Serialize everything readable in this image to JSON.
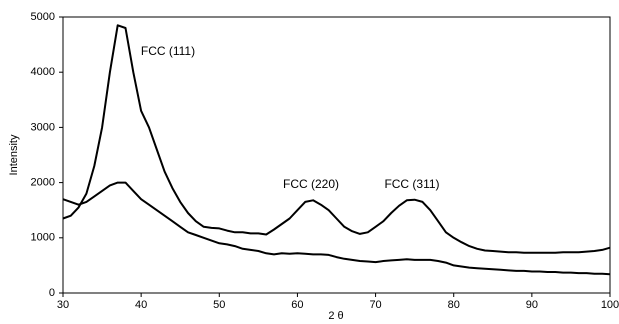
{
  "chart_data": {
    "type": "line",
    "x_label": "2 θ",
    "y_label": "Intensity",
    "annotations": [
      "FCC (111)",
      "FCC (220)",
      "FCC (311)"
    ],
    "x": [
      30,
      31,
      32,
      33,
      34,
      35,
      36,
      37,
      38,
      39,
      40,
      41,
      42,
      43,
      44,
      45,
      46,
      47,
      48,
      49,
      50,
      51,
      52,
      53,
      54,
      55,
      56,
      57,
      58,
      59,
      60,
      61,
      62,
      63,
      64,
      65,
      66,
      67,
      68,
      69,
      70,
      71,
      72,
      73,
      74,
      75,
      76,
      77,
      78,
      79,
      80,
      81,
      82,
      83,
      84,
      85,
      86,
      87,
      88,
      89,
      90,
      91,
      92,
      93,
      94,
      95,
      96,
      97,
      98,
      99,
      100
    ],
    "series": [
      {
        "color": "#000000",
        "values": [
          1350,
          1400,
          1550,
          1800,
          2300,
          3000,
          4000,
          4850,
          4800,
          4000,
          3300,
          3000,
          2600,
          2200,
          1900,
          1650,
          1450,
          1300,
          1200,
          1180,
          1170,
          1130,
          1100,
          1100,
          1080,
          1080,
          1060,
          1150,
          1250,
          1350,
          1500,
          1650,
          1680,
          1600,
          1500,
          1350,
          1200,
          1120,
          1070,
          1100,
          1200,
          1300,
          1450,
          1580,
          1680,
          1690,
          1650,
          1500,
          1300,
          1100,
          1000,
          920,
          850,
          800,
          770,
          760,
          750,
          740,
          740,
          730,
          730,
          730,
          730,
          730,
          740,
          740,
          740,
          750,
          760,
          780,
          820
        ]
      },
      {
        "color": "#000000",
        "values": [
          1700,
          1650,
          1600,
          1650,
          1750,
          1850,
          1950,
          2000,
          2000,
          1850,
          1700,
          1600,
          1500,
          1400,
          1300,
          1200,
          1100,
          1050,
          1000,
          950,
          900,
          880,
          850,
          800,
          780,
          760,
          720,
          700,
          720,
          710,
          720,
          710,
          700,
          700,
          690,
          650,
          620,
          600,
          580,
          570,
          560,
          580,
          590,
          600,
          610,
          600,
          600,
          600,
          580,
          550,
          500,
          480,
          460,
          450,
          440,
          430,
          420,
          410,
          400,
          400,
          390,
          390,
          380,
          380,
          370,
          370,
          360,
          360,
          350,
          350,
          340
        ]
      }
    ],
    "xlim": [
      30,
      100
    ],
    "xticks": [
      30,
      40,
      50,
      60,
      70,
      80,
      90,
      100
    ],
    "ylim": [
      0,
      5000
    ],
    "yticks": [
      0,
      1000,
      2000,
      3000,
      4000,
      5000
    ],
    "grid": false
  }
}
